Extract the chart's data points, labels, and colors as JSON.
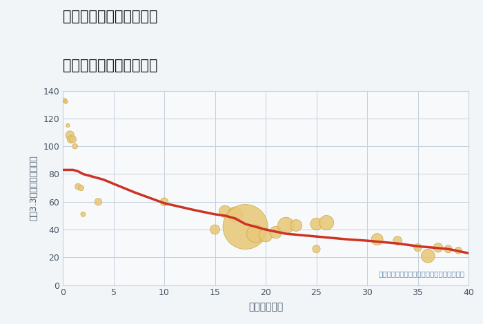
{
  "title_line1": "兵庫県姫路市増位新町の",
  "title_line2": "築年数別中古戸建て価格",
  "xlabel": "築年数（年）",
  "ylabel": "坪（3.3㎡）単価（万円）",
  "bg_color": "#f2f5f8",
  "plot_bg_color": "#f7f9fb",
  "scatter_color": "#e8c97a",
  "scatter_edge_color": "#c8a040",
  "line_color": "#cc3322",
  "annotation_text": "円の大きさは、取引のあった物件面積を示す",
  "annotation_color": "#6688aa",
  "xlim": [
    0,
    40
  ],
  "ylim": [
    0,
    140
  ],
  "xticks": [
    0,
    5,
    10,
    15,
    20,
    25,
    30,
    35,
    40
  ],
  "yticks": [
    0,
    20,
    40,
    60,
    80,
    100,
    120,
    140
  ],
  "scatter_x": [
    0.2,
    0.3,
    0.5,
    0.7,
    0.8,
    1.0,
    1.2,
    1.5,
    1.8,
    2.0,
    3.5,
    10,
    15,
    16,
    17,
    18,
    19,
    20,
    21,
    22,
    23,
    25,
    25,
    26,
    31,
    33,
    35,
    36,
    37,
    38,
    39
  ],
  "scatter_y": [
    133,
    132,
    115,
    108,
    105,
    105,
    100,
    71,
    70,
    51,
    60,
    60,
    40,
    53,
    51,
    42,
    37,
    36,
    38,
    43,
    43,
    26,
    44,
    45,
    33,
    32,
    27,
    21,
    27,
    26,
    25
  ],
  "scatter_size": [
    20,
    15,
    15,
    80,
    60,
    50,
    30,
    40,
    35,
    25,
    55,
    70,
    100,
    160,
    240,
    2200,
    340,
    200,
    160,
    290,
    150,
    65,
    160,
    230,
    150,
    85,
    65,
    200,
    95,
    65,
    50
  ],
  "line_x": [
    0,
    0.5,
    1,
    1.5,
    2,
    3,
    4,
    5,
    7,
    10,
    13,
    15,
    16,
    17,
    18,
    19,
    20,
    22,
    25,
    28,
    30,
    33,
    35,
    38,
    40
  ],
  "line_y": [
    83,
    83,
    83,
    82,
    80,
    78,
    76,
    73,
    67,
    59,
    54,
    51,
    50,
    48,
    44,
    42,
    40,
    37,
    35,
    33,
    32,
    30,
    28,
    26,
    23
  ]
}
